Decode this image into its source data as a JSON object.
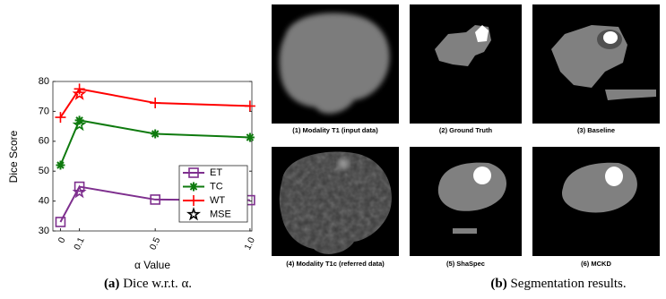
{
  "chart_data": {
    "type": "line",
    "y_label": "Dice Score",
    "x_label": "α Value",
    "x": [
      0,
      0.1,
      0.5,
      1
    ],
    "xlim": [
      -0.04,
      1.01
    ],
    "xticks": [
      0,
      0.1,
      0.5,
      {
        "value": 1,
        "label": "1.0"
      }
    ],
    "ylim": [
      30,
      80
    ],
    "yticks": [
      30,
      40,
      50,
      60,
      70,
      80
    ],
    "legend": "right",
    "series": [
      {
        "name": "ET",
        "color": "#7e2f8e",
        "marker": "square",
        "values": [
          33,
          44.8,
          40.5,
          40.3
        ],
        "mse_value": 43
      },
      {
        "name": "TC",
        "color": "#0e7a0e",
        "marker": "asterisk",
        "values": [
          52,
          67,
          62.5,
          61.3
        ],
        "mse_value": 65.5
      },
      {
        "name": "WT",
        "color": "#ff0000",
        "marker": "plus",
        "values": [
          68,
          77.5,
          72.8,
          71.8
        ],
        "mse_value": 75.8
      }
    ],
    "mse_x": 0.1,
    "mse_entry": {
      "name": "MSE",
      "color": "#000000",
      "marker": "star"
    }
  },
  "caption_a": {
    "tag": "(a)",
    "text": "Dice w.r.t. α."
  },
  "panel_b": {
    "images": [
      {
        "label": "(1) Modality T1 (input data)"
      },
      {
        "label": "(2) Ground Truth"
      },
      {
        "label": "(3) Baseline"
      },
      {
        "label": "(4) Modality T1c (referred data)"
      },
      {
        "label": "(5) ShaSpec"
      },
      {
        "label": "(6) MCKD"
      }
    ],
    "caption": {
      "tag": "(b)",
      "text": "Segmentation results."
    }
  }
}
